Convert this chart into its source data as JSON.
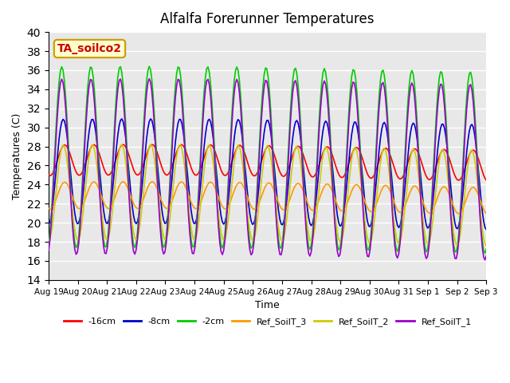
{
  "title": "Alfalfa Forerunner Temperatures",
  "xlabel": "Time",
  "ylabel": "Temperatures (C)",
  "ylim": [
    14,
    40
  ],
  "yticks": [
    14,
    16,
    18,
    20,
    22,
    24,
    26,
    28,
    30,
    32,
    34,
    36,
    38,
    40
  ],
  "n_points": 336,
  "days": 15,
  "series": {
    "-16cm": {
      "color": "#ff0000",
      "base": 26.2,
      "amp": 1.6,
      "phase": 0.55
    },
    "-8cm": {
      "color": "#0000cc",
      "base": 25.0,
      "amp": 5.5,
      "phase": 0.5
    },
    "-2cm": {
      "color": "#00cc00",
      "base": 26.5,
      "amp": 9.5,
      "phase": 0.45
    },
    "Ref_SoilT_3": {
      "color": "#ff9900",
      "base": 22.5,
      "amp": 1.4,
      "phase": 0.55
    },
    "Ref_SoilT_2": {
      "color": "#cccc00",
      "base": 22.8,
      "amp": 5.0,
      "phase": 0.5
    },
    "Ref_SoilT_1": {
      "color": "#9900cc",
      "base": 25.5,
      "amp": 9.2,
      "phase": 0.45
    }
  },
  "annotation_text": "TA_soilco2",
  "annotation_color": "#cc0000",
  "annotation_bg": "#ffffcc",
  "annotation_border": "#cc9900",
  "xtick_labels": [
    "Aug 19",
    "Aug 20",
    "Aug 21",
    "Aug 22",
    "Aug 23",
    "Aug 24",
    "Aug 25",
    "Aug 26",
    "Aug 27",
    "Aug 28",
    "Aug 29",
    "Aug 30",
    "Aug 31",
    "Sep 1",
    "Sep 2",
    "Sep 3"
  ],
  "bg_color": "#e8e8e8",
  "grid_color": "#ffffff"
}
